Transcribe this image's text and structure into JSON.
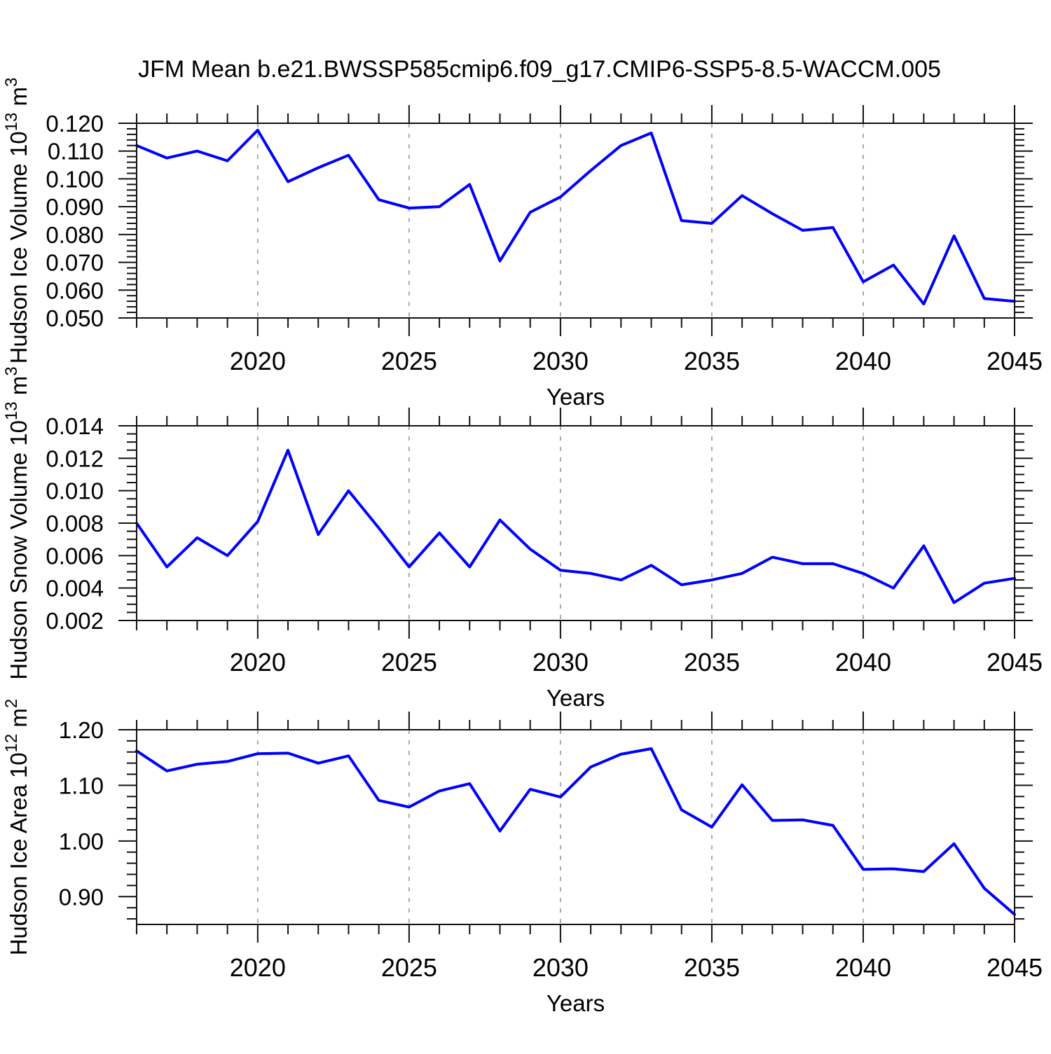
{
  "title": "JFM Mean b.e21.BWSSP585cmip6.f09_g17.CMIP6-SSP5-8.5-WACCM.005",
  "colors": {
    "line": "#0000ff",
    "grid": "#a3a3a3",
    "axis": "#111111",
    "text": "#000000",
    "background": "#ffffff"
  },
  "chart_data": [
    {
      "type": "line",
      "id": "hudson-ice-volume",
      "ylabel_plain": "Hudson Ice Volume 10^13 m^3",
      "ylabel_rich": [
        {
          "t": "Hudson Ice Volume 10",
          "sup": false
        },
        {
          "t": "13",
          "sup": true
        },
        {
          "t": " m",
          "sup": false
        },
        {
          "t": "3",
          "sup": true
        }
      ],
      "xlabel": "Years",
      "x": [
        2016,
        2017,
        2018,
        2019,
        2020,
        2021,
        2022,
        2023,
        2024,
        2025,
        2026,
        2027,
        2028,
        2029,
        2030,
        2031,
        2032,
        2033,
        2034,
        2035,
        2036,
        2037,
        2038,
        2039,
        2040,
        2041,
        2042,
        2043,
        2044,
        2045
      ],
      "values": [
        0.112,
        0.1075,
        0.11,
        0.1065,
        0.1175,
        0.099,
        0.104,
        0.1085,
        0.0925,
        0.0895,
        0.09,
        0.098,
        0.0705,
        0.088,
        0.0935,
        0.103,
        0.112,
        0.1165,
        0.085,
        0.084,
        0.094,
        0.0875,
        0.0815,
        0.0825,
        0.063,
        0.069,
        0.055,
        0.0795,
        0.057,
        0.056
      ],
      "xlim": [
        2016,
        2045
      ],
      "ylim": [
        0.05,
        0.12
      ],
      "yticks": [
        {
          "v": 0.05,
          "label": "0.050"
        },
        {
          "v": 0.06,
          "label": "0.060"
        },
        {
          "v": 0.07,
          "label": "0.070"
        },
        {
          "v": 0.08,
          "label": "0.080"
        },
        {
          "v": 0.09,
          "label": "0.090"
        },
        {
          "v": 0.1,
          "label": "0.100"
        },
        {
          "v": 0.11,
          "label": "0.110"
        },
        {
          "v": 0.12,
          "label": "0.120"
        }
      ],
      "ymajor_step": 0.01,
      "yminor_step": 0.002,
      "xticks": [
        {
          "v": 2020,
          "label": "2020"
        },
        {
          "v": 2025,
          "label": "2025"
        },
        {
          "v": 2030,
          "label": "2030"
        },
        {
          "v": 2035,
          "label": "2035"
        },
        {
          "v": 2040,
          "label": "2040"
        },
        {
          "v": 2045,
          "label": "2045"
        }
      ],
      "xminor_step": 1,
      "grid_years": [
        2020,
        2025,
        2030,
        2035,
        2040
      ],
      "grid_style": "vertical-dashed",
      "legend": "none"
    },
    {
      "type": "line",
      "id": "hudson-snow-volume",
      "ylabel_plain": "Hudson Snow Volume 10^13 m^3",
      "ylabel_rich": [
        {
          "t": "Hudson Snow Volume 10",
          "sup": false
        },
        {
          "t": "13",
          "sup": true
        },
        {
          "t": " m",
          "sup": false
        },
        {
          "t": "3",
          "sup": true
        }
      ],
      "xlabel": "Years",
      "x": [
        2016,
        2017,
        2018,
        2019,
        2020,
        2021,
        2022,
        2023,
        2024,
        2025,
        2026,
        2027,
        2028,
        2029,
        2030,
        2031,
        2032,
        2033,
        2034,
        2035,
        2036,
        2037,
        2038,
        2039,
        2040,
        2041,
        2042,
        2043,
        2044,
        2045
      ],
      "values": [
        0.008,
        0.0053,
        0.0071,
        0.006,
        0.0081,
        0.0125,
        0.0073,
        0.01,
        0.0077,
        0.0053,
        0.0074,
        0.0053,
        0.0082,
        0.0064,
        0.0051,
        0.0049,
        0.0045,
        0.0054,
        0.0042,
        0.0045,
        0.0049,
        0.0059,
        0.0055,
        0.0055,
        0.0049,
        0.004,
        0.0066,
        0.0031,
        0.0043,
        0.0046
      ],
      "xlim": [
        2016,
        2045
      ],
      "ylim": [
        0.002,
        0.014
      ],
      "yticks": [
        {
          "v": 0.002,
          "label": "0.002"
        },
        {
          "v": 0.004,
          "label": "0.004"
        },
        {
          "v": 0.006,
          "label": "0.006"
        },
        {
          "v": 0.008,
          "label": "0.008"
        },
        {
          "v": 0.01,
          "label": "0.010"
        },
        {
          "v": 0.012,
          "label": "0.012"
        },
        {
          "v": 0.014,
          "label": "0.014"
        }
      ],
      "ymajor_step": 0.002,
      "yminor_step": 0.0005,
      "xticks": [
        {
          "v": 2020,
          "label": "2020"
        },
        {
          "v": 2025,
          "label": "2025"
        },
        {
          "v": 2030,
          "label": "2030"
        },
        {
          "v": 2035,
          "label": "2035"
        },
        {
          "v": 2040,
          "label": "2040"
        },
        {
          "v": 2045,
          "label": "2045"
        }
      ],
      "xminor_step": 1,
      "grid_years": [
        2020,
        2025,
        2030,
        2035,
        2040
      ],
      "grid_style": "vertical-dashed",
      "legend": "none"
    },
    {
      "type": "line",
      "id": "hudson-ice-area",
      "ylabel_plain": "Hudson Ice Area 10^12 m^2",
      "ylabel_rich": [
        {
          "t": "Hudson Ice Area 10",
          "sup": false
        },
        {
          "t": "12",
          "sup": true
        },
        {
          "t": " m",
          "sup": false
        },
        {
          "t": "2",
          "sup": true
        }
      ],
      "xlabel": "Years",
      "x": [
        2016,
        2017,
        2018,
        2019,
        2020,
        2021,
        2022,
        2023,
        2024,
        2025,
        2026,
        2027,
        2028,
        2029,
        2030,
        2031,
        2032,
        2033,
        2034,
        2035,
        2036,
        2037,
        2038,
        2039,
        2040,
        2041,
        2042,
        2043,
        2044,
        2045
      ],
      "values": [
        1.162,
        1.126,
        1.138,
        1.143,
        1.157,
        1.158,
        1.14,
        1.153,
        1.073,
        1.061,
        1.09,
        1.103,
        1.018,
        1.093,
        1.079,
        1.133,
        1.156,
        1.166,
        1.056,
        1.025,
        1.101,
        1.037,
        1.038,
        1.028,
        0.949,
        0.95,
        0.945,
        0.995,
        0.915,
        0.868
      ],
      "xlim": [
        2016,
        2045
      ],
      "ylim": [
        0.85,
        1.2
      ],
      "yticks": [
        {
          "v": 0.9,
          "label": "0.90"
        },
        {
          "v": 1.0,
          "label": "1.00"
        },
        {
          "v": 1.1,
          "label": "1.10"
        },
        {
          "v": 1.2,
          "label": "1.20"
        }
      ],
      "ymajor_step": 0.1,
      "yminor_step": 0.02,
      "xticks": [
        {
          "v": 2020,
          "label": "2020"
        },
        {
          "v": 2025,
          "label": "2025"
        },
        {
          "v": 2030,
          "label": "2030"
        },
        {
          "v": 2035,
          "label": "2035"
        },
        {
          "v": 2040,
          "label": "2040"
        },
        {
          "v": 2045,
          "label": "2045"
        }
      ],
      "xminor_step": 1,
      "grid_years": [
        2020,
        2025,
        2030,
        2035,
        2040
      ],
      "grid_style": "vertical-dashed",
      "legend": "none"
    }
  ]
}
